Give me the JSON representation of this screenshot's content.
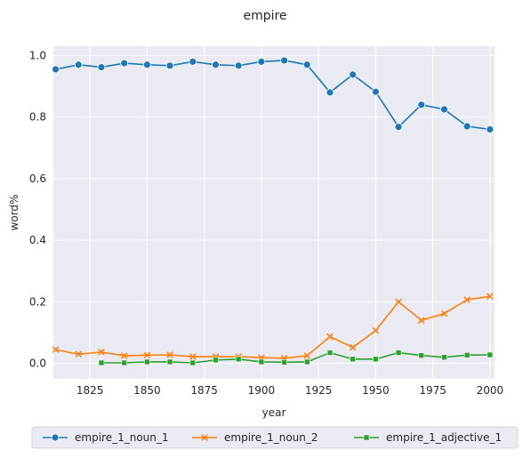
{
  "chart_data": {
    "type": "line",
    "title": "empire",
    "xlabel": "year",
    "ylabel": "word%",
    "xlim": [
      1809,
      2002
    ],
    "ylim": [
      -0.05,
      1.03
    ],
    "x_ticks": [
      1825,
      1850,
      1875,
      1900,
      1925,
      1950,
      1975,
      2000
    ],
    "y_ticks": [
      0.0,
      0.2,
      0.4,
      0.6,
      0.8,
      1.0
    ],
    "x_tick_labels": [
      "1825",
      "1850",
      "1875",
      "1900",
      "1925",
      "1950",
      "1975",
      "2000"
    ],
    "y_tick_labels": [
      "0.0",
      "0.2",
      "0.4",
      "0.6",
      "0.8",
      "1.0"
    ],
    "grid": true,
    "legend_position": "bottom",
    "series": [
      {
        "name": "empire_1_noun_1",
        "color": "#1f77b4",
        "marker": "circle",
        "x": [
          1810,
          1820,
          1830,
          1840,
          1850,
          1860,
          1870,
          1880,
          1890,
          1900,
          1910,
          1920,
          1930,
          1940,
          1950,
          1960,
          1970,
          1980,
          1990,
          2000
        ],
        "y": [
          0.955,
          0.97,
          0.962,
          0.975,
          0.97,
          0.967,
          0.98,
          0.97,
          0.967,
          0.98,
          0.984,
          0.97,
          0.88,
          0.938,
          0.882,
          0.768,
          0.84,
          0.825,
          0.77,
          0.76
        ]
      },
      {
        "name": "empire_1_noun_2",
        "color": "#ff7f0e",
        "marker": "x",
        "x": [
          1810,
          1820,
          1830,
          1840,
          1850,
          1860,
          1870,
          1880,
          1890,
          1900,
          1910,
          1920,
          1930,
          1940,
          1950,
          1960,
          1970,
          1980,
          1990,
          2000
        ],
        "y": [
          0.045,
          0.03,
          0.037,
          0.025,
          0.027,
          0.028,
          0.022,
          0.022,
          0.022,
          0.019,
          0.017,
          0.025,
          0.087,
          0.052,
          0.107,
          0.2,
          0.14,
          0.162,
          0.207,
          0.218
        ]
      },
      {
        "name": "empire_1_adjective_1",
        "color": "#2ca02c",
        "marker": "square",
        "x": [
          1830,
          1840,
          1850,
          1860,
          1870,
          1880,
          1890,
          1900,
          1910,
          1920,
          1930,
          1940,
          1950,
          1960,
          1970,
          1980,
          1990,
          2000
        ],
        "y": [
          0.002,
          0.002,
          0.005,
          0.005,
          0.002,
          0.011,
          0.014,
          0.005,
          0.004,
          0.005,
          0.035,
          0.014,
          0.014,
          0.035,
          0.026,
          0.02,
          0.027,
          0.028
        ]
      }
    ]
  }
}
